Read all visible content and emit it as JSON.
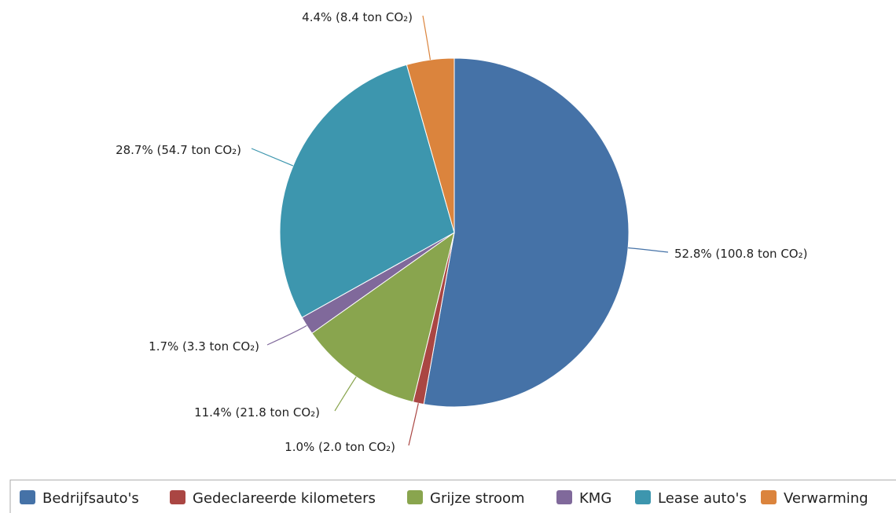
{
  "chart_data": {
    "type": "pie",
    "unit_suffix": "ton CO₂",
    "slices": [
      {
        "name": "Bedrijfsauto's",
        "percent": 52.8,
        "value": 100.8,
        "label": "52.8% (100.8 ton CO₂)",
        "color": "#4572a7",
        "label_side": "right"
      },
      {
        "name": "Gedeclareerde kilometers",
        "percent": 1.0,
        "value": 2.0,
        "label": "1.0% (2.0 ton CO₂)",
        "color": "#aa4643",
        "label_side": "bottom"
      },
      {
        "name": "Grijze stroom",
        "percent": 11.4,
        "value": 21.8,
        "label": "11.4% (21.8 ton CO₂)",
        "color": "#89a54e",
        "label_side": "left"
      },
      {
        "name": "KMG",
        "percent": 1.7,
        "value": 3.3,
        "label": "1.7% (3.3 ton CO₂)",
        "color": "#80699b",
        "label_side": "left"
      },
      {
        "name": "Lease auto's",
        "percent": 28.7,
        "value": 54.7,
        "label": "28.7% (54.7 ton CO₂)",
        "color": "#3d96ae",
        "label_side": "left"
      },
      {
        "name": "Verwarming",
        "percent": 4.4,
        "value": 8.4,
        "label": "4.4% (8.4 ton CO₂)",
        "color": "#db843d",
        "label_side": "top"
      }
    ],
    "legend_position": "bottom"
  }
}
